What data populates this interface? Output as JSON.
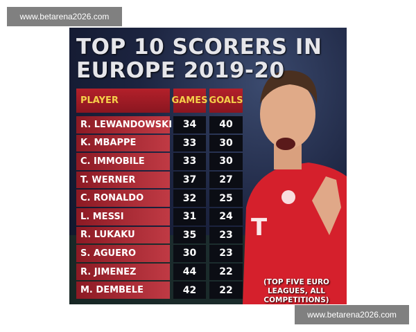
{
  "watermark_top": "www.betarena2026.com",
  "watermark_bottom": "www.betarena2026.com",
  "header": {
    "title_line1": "TOP 10 SCORERS IN",
    "title_line2": "EUROPE 2019-20"
  },
  "table": {
    "columns": [
      "PLAYER",
      "GAMES",
      "GOALS"
    ],
    "rows": [
      [
        "R. LEWANDOWSKI",
        34,
        40
      ],
      [
        "K. MBAPPE",
        33,
        30
      ],
      [
        "C. IMMOBILE",
        33,
        30
      ],
      [
        "T. WERNER",
        37,
        27
      ],
      [
        "C. RONALDO",
        32,
        25
      ],
      [
        "L. MESSI",
        31,
        24
      ],
      [
        "R. LUKAKU",
        35,
        23
      ],
      [
        "S. AGUERO",
        30,
        23
      ],
      [
        "R. JIMENEZ",
        44,
        22
      ],
      [
        "M. DEMBELE",
        42,
        22
      ]
    ]
  },
  "footnote": "(TOP FIVE EURO LEAGUES, ALL COMPETITIONS)"
}
